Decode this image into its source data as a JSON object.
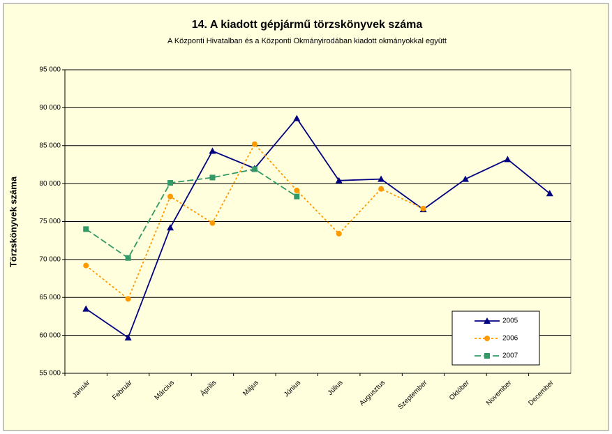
{
  "chart_data": {
    "type": "line",
    "title": "14. A  kiadott  gépjármű  törzskönyvek  száma",
    "subtitle": "A Központi Hivatalban és a Központi Okmányirodában kiadott okmányokkal együtt",
    "y_label": "Törzskönyvek száma",
    "categories": [
      "Január",
      "Február",
      "Március",
      "Április",
      "Május",
      "Június",
      "Július",
      "Augusztus",
      "Szeptember",
      "Október",
      "November",
      "December"
    ],
    "series": [
      {
        "name": "2005",
        "color": "#000080",
        "marker": "triangle",
        "dash": "",
        "values": [
          63500,
          59700,
          74200,
          84300,
          82000,
          88600,
          80400,
          80600,
          76600,
          80600,
          83200,
          78700
        ]
      },
      {
        "name": "2006",
        "color": "#ff9900",
        "marker": "circle",
        "dash": "3 3",
        "values": [
          69200,
          64800,
          78300,
          74800,
          85200,
          79100,
          73400,
          79300,
          76700,
          null,
          null,
          null
        ]
      },
      {
        "name": "2007",
        "color": "#339966",
        "marker": "square",
        "dash": "9 4",
        "values": [
          74000,
          70200,
          80100,
          80800,
          81900,
          78300,
          null,
          null,
          null,
          null,
          null,
          null
        ]
      }
    ],
    "ylim": [
      55000,
      95000
    ],
    "yticks": [
      {
        "value": 55000,
        "label": "55 000"
      },
      {
        "value": 60000,
        "label": "60 000"
      },
      {
        "value": 65000,
        "label": "65 000"
      },
      {
        "value": 70000,
        "label": "70 000"
      },
      {
        "value": 75000,
        "label": "75 000"
      },
      {
        "value": 80000,
        "label": "80 000"
      },
      {
        "value": 85000,
        "label": "85 000"
      },
      {
        "value": 90000,
        "label": "90 000"
      },
      {
        "value": 95000,
        "label": "95 000"
      }
    ],
    "grid": true,
    "legend": "lower right"
  }
}
